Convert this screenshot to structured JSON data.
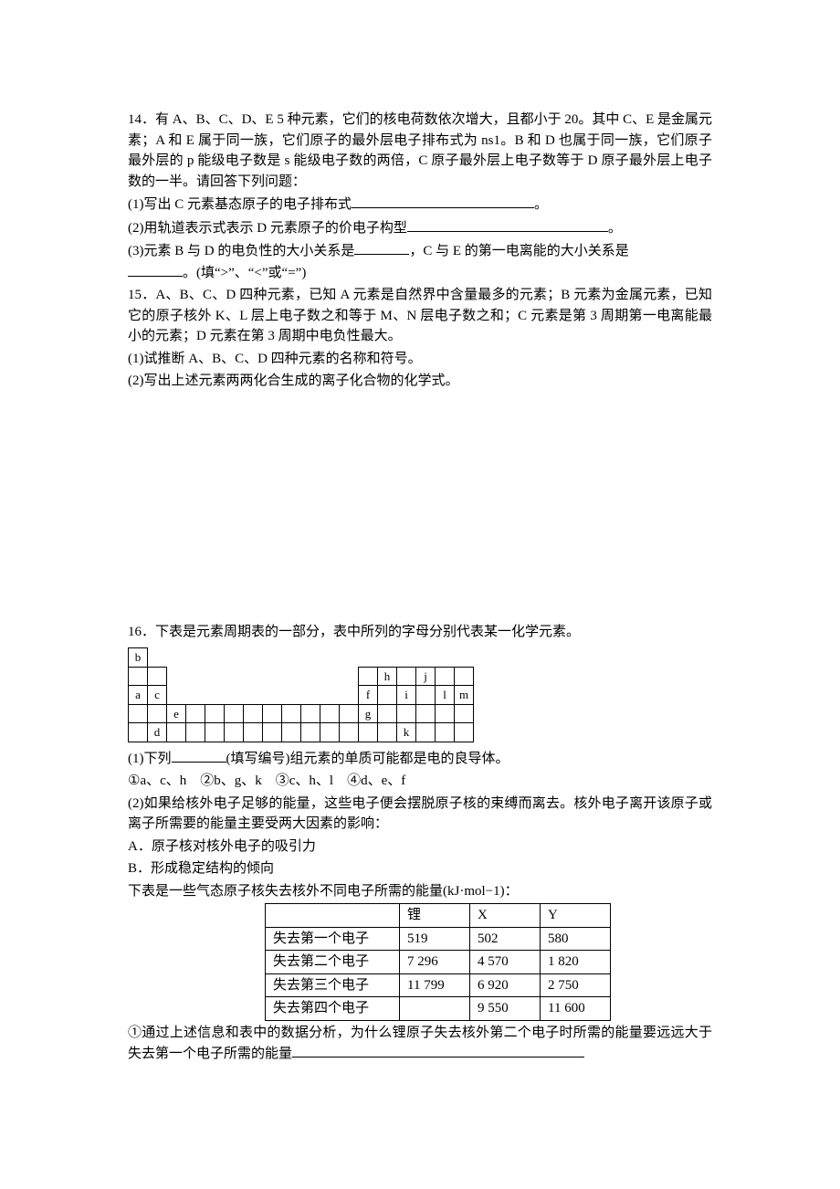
{
  "q14": {
    "stem1": "14．有 A、B、C、D、E 5 种元素，它们的核电荷数依次增大，且都小于 20。其中 C、E 是金属元素；A 和 E 属于同一族，它们原子的最外层电子排布式为 ns1。B 和 D 也属于同一族，它们原子最外层的 p 能级电子数是 s 能级电子数的两倍，C 原子最外层上电子数等于 D 原子最外层上电子数的一半。请回答下列问题：",
    "p1a": "(1)写出 C 元素基态原子的电子排布式",
    "p1b": "。",
    "p2a": "(2)用轨道表示式表示 D 元素原子的价电子构型",
    "p2b": "。",
    "p3a": "(3)元素 B 与 D 的电负性的大小关系是",
    "p3b": "，C 与 E 的第一电离能的大小关系是",
    "p3c": "。(填“>”、“<”或“=”)"
  },
  "q15": {
    "stem": "15．A、B、C、D 四种元素，已知 A 元素是自然界中含量最多的元素；B 元素为金属元素，已知它的原子核外 K、L 层上电子数之和等于 M、N 层电子数之和；C 元素是第 3 周期第一电离能最小的元素；D 元素在第 3 周期中电负性最大。",
    "p1": "(1)试推断 A、B、C、D 四种元素的名称和符号。",
    "p2": "(2)写出上述元素两两化合生成的离子化合物的化学式。"
  },
  "q16": {
    "stem": "16．下表是元素周期表的一部分，表中所列的字母分别代表某一化学元素。",
    "ptable": {
      "rows": [
        {
          "cells": [
            {
              "t": "b",
              "b": 1
            },
            {
              "t": "",
              "b": 0
            },
            {
              "t": "",
              "b": 0
            },
            {
              "t": "",
              "b": 0
            },
            {
              "t": "",
              "b": 0
            },
            {
              "t": "",
              "b": 0
            },
            {
              "t": "",
              "b": 0
            },
            {
              "t": "",
              "b": 0
            },
            {
              "t": "",
              "b": 0
            },
            {
              "t": "",
              "b": 0
            },
            {
              "t": "",
              "b": 0
            },
            {
              "t": "",
              "b": 0
            },
            {
              "t": "",
              "b": 0
            },
            {
              "t": "",
              "b": 0
            },
            {
              "t": "",
              "b": 0
            },
            {
              "t": "",
              "b": 0
            },
            {
              "t": "",
              "b": 0
            },
            {
              "t": "",
              "b": 0
            }
          ]
        },
        {
          "cells": [
            {
              "t": "",
              "b": 1
            },
            {
              "t": "",
              "b": 1
            },
            {
              "t": "",
              "b": 0
            },
            {
              "t": "",
              "b": 0
            },
            {
              "t": "",
              "b": 0
            },
            {
              "t": "",
              "b": 0
            },
            {
              "t": "",
              "b": 0
            },
            {
              "t": "",
              "b": 0
            },
            {
              "t": "",
              "b": 0
            },
            {
              "t": "",
              "b": 0
            },
            {
              "t": "",
              "b": 0
            },
            {
              "t": "",
              "b": 0
            },
            {
              "t": "",
              "b": 1
            },
            {
              "t": "h",
              "b": 1
            },
            {
              "t": "",
              "b": 1
            },
            {
              "t": "j",
              "b": 1
            },
            {
              "t": "",
              "b": 1
            },
            {
              "t": "",
              "b": 1
            }
          ]
        },
        {
          "cells": [
            {
              "t": "a",
              "b": 1
            },
            {
              "t": "c",
              "b": 1
            },
            {
              "t": "",
              "b": 0
            },
            {
              "t": "",
              "b": 0
            },
            {
              "t": "",
              "b": 0
            },
            {
              "t": "",
              "b": 0
            },
            {
              "t": "",
              "b": 0
            },
            {
              "t": "",
              "b": 0
            },
            {
              "t": "",
              "b": 0
            },
            {
              "t": "",
              "b": 0
            },
            {
              "t": "",
              "b": 0
            },
            {
              "t": "",
              "b": 0
            },
            {
              "t": "f",
              "b": 1
            },
            {
              "t": "",
              "b": 1
            },
            {
              "t": "i",
              "b": 1
            },
            {
              "t": "",
              "b": 1
            },
            {
              "t": "l",
              "b": 1
            },
            {
              "t": "m",
              "b": 1
            }
          ]
        },
        {
          "cells": [
            {
              "t": "",
              "b": 1
            },
            {
              "t": "",
              "b": 1
            },
            {
              "t": "e",
              "b": 1
            },
            {
              "t": "",
              "b": 1
            },
            {
              "t": "",
              "b": 1
            },
            {
              "t": "",
              "b": 1
            },
            {
              "t": "",
              "b": 1
            },
            {
              "t": "",
              "b": 1
            },
            {
              "t": "",
              "b": 1
            },
            {
              "t": "",
              "b": 1
            },
            {
              "t": "",
              "b": 1
            },
            {
              "t": "",
              "b": 1
            },
            {
              "t": "g",
              "b": 1
            },
            {
              "t": "",
              "b": 1
            },
            {
              "t": "",
              "b": 1
            },
            {
              "t": "",
              "b": 1
            },
            {
              "t": "",
              "b": 1
            },
            {
              "t": "",
              "b": 1
            }
          ]
        },
        {
          "cells": [
            {
              "t": "",
              "b": 1
            },
            {
              "t": "d",
              "b": 1
            },
            {
              "t": "",
              "b": 1
            },
            {
              "t": "",
              "b": 1
            },
            {
              "t": "",
              "b": 1
            },
            {
              "t": "",
              "b": 1
            },
            {
              "t": "",
              "b": 1
            },
            {
              "t": "",
              "b": 1
            },
            {
              "t": "",
              "b": 1
            },
            {
              "t": "",
              "b": 1
            },
            {
              "t": "",
              "b": 1
            },
            {
              "t": "",
              "b": 1
            },
            {
              "t": "",
              "b": 1
            },
            {
              "t": "",
              "b": 1
            },
            {
              "t": "k",
              "b": 1
            },
            {
              "t": "",
              "b": 1
            },
            {
              "t": "",
              "b": 1
            },
            {
              "t": "",
              "b": 1
            }
          ]
        }
      ]
    },
    "p1a": "(1)下列",
    "p1b": "(填写编号)组元素的单质可能都是电的良导体。",
    "opts": "①a、c、h　②b、g、k　③c、h、l　④d、e、f",
    "p2": "(2)如果给核外电子足够的能量，这些电子便会摆脱原子核的束缚而离去。核外电子离开该原子或离子所需要的能量主要受两大因素的影响：",
    "fA": "A．原子核对核外电子的吸引力",
    "fB": "B．形成稳定结构的倾向",
    "lead": "下表是一些气态原子核失去核外不同电子所需的能量(kJ·mol−1)：",
    "etable": {
      "header": [
        "",
        "锂",
        "X",
        "Y"
      ],
      "rows": [
        [
          "失去第一个电子",
          "519",
          "502",
          "580"
        ],
        [
          "失去第二个电子",
          "7 296",
          "4 570",
          "1 820"
        ],
        [
          "失去第三个电子",
          "11 799",
          "6 920",
          "2 750"
        ],
        [
          "失去第四个电子",
          "",
          "9 550",
          "11 600"
        ]
      ]
    },
    "q1": "①通过上述信息和表中的数据分析，为什么锂原子失去核外第二个电子时所需的能量要远远大于失去第一个电子所需的能量"
  }
}
